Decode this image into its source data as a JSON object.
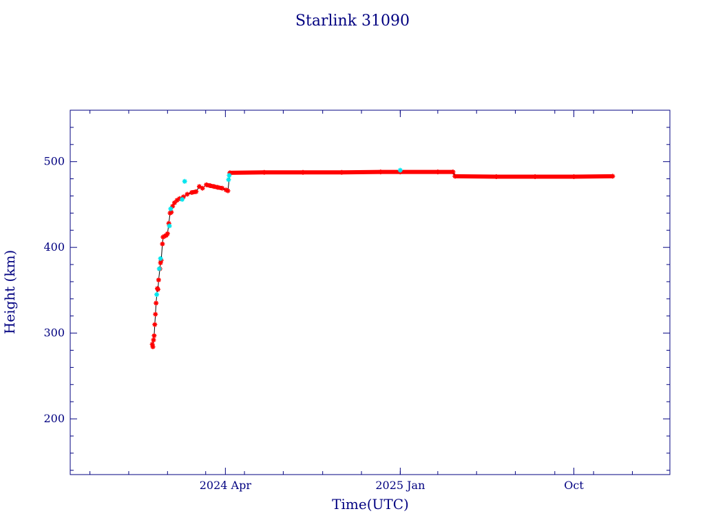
{
  "chart_data": {
    "type": "scatter",
    "title": "Starlink 31090",
    "xlabel": "Time(UTC)",
    "ylabel": "Height (km)",
    "xlim": [
      "2023-08-01",
      "2026-03-01"
    ],
    "ylim": [
      135,
      560
    ],
    "x_ticks": [
      {
        "date": "2024-04-01",
        "label": "2024 Apr"
      },
      {
        "date": "2025-01-01",
        "label": "2025 Jan"
      },
      {
        "date": "2025-10-01",
        "label": "Oct"
      }
    ],
    "y_ticks": [
      200,
      300,
      400,
      500
    ],
    "grid": false,
    "colors": {
      "axis": "#000080",
      "line": "#000000",
      "primary": "#ff0000",
      "secondary": "#00e5ee"
    },
    "series": [
      {
        "points": [
          [
            "2023-12-08",
            287
          ],
          [
            "2023-12-09",
            284
          ],
          [
            "2023-12-10",
            292
          ],
          [
            "2023-12-11",
            297
          ],
          [
            "2023-12-12",
            310
          ],
          [
            "2023-12-13",
            322
          ],
          [
            "2023-12-14",
            335
          ],
          [
            "2023-12-16",
            352
          ],
          [
            "2023-12-17",
            351
          ],
          [
            "2023-12-18",
            362
          ],
          [
            "2023-12-20",
            375
          ],
          [
            "2023-12-21",
            382
          ],
          [
            "2023-12-22",
            385
          ],
          [
            "2023-12-24",
            404
          ],
          [
            "2023-12-25",
            412
          ],
          [
            "2023-12-27",
            413
          ],
          [
            "2023-12-30",
            414
          ],
          [
            "2024-01-01",
            416
          ],
          [
            "2024-01-03",
            428
          ],
          [
            "2024-01-05",
            440
          ],
          [
            "2024-01-07",
            441
          ],
          [
            "2024-01-09",
            448
          ],
          [
            "2024-01-12",
            452
          ],
          [
            "2024-01-16",
            455
          ],
          [
            "2024-01-20",
            457
          ],
          [
            "2024-01-26",
            459
          ],
          [
            "2024-02-01",
            462
          ],
          [
            "2024-02-08",
            464
          ],
          [
            "2024-02-15",
            465
          ],
          [
            "2024-02-20",
            471
          ],
          [
            "2024-02-25",
            469
          ],
          [
            "2024-03-02",
            473
          ],
          [
            "2024-03-08",
            472
          ],
          [
            "2024-03-14",
            471
          ],
          [
            "2024-03-20",
            470
          ],
          [
            "2024-03-27",
            469
          ],
          [
            "2024-04-02",
            467
          ],
          [
            "2024-04-05",
            466
          ],
          [
            "2024-04-08",
            487
          ],
          [
            "2024-06-01",
            487.5
          ],
          [
            "2024-08-01",
            487.5
          ],
          [
            "2024-10-01",
            487.5
          ],
          [
            "2024-12-01",
            488
          ],
          [
            "2025-01-01",
            488
          ],
          [
            "2025-03-01",
            488
          ],
          [
            "2025-03-25",
            488
          ],
          [
            "2025-03-28",
            483
          ],
          [
            "2025-06-01",
            482.5
          ],
          [
            "2025-08-01",
            482.5
          ],
          [
            "2025-10-01",
            482.5
          ],
          [
            "2025-12-01",
            483
          ]
        ]
      },
      {
        "points": [
          [
            "2023-12-15",
            345
          ],
          [
            "2023-12-19",
            375
          ],
          [
            "2023-12-21",
            387
          ],
          [
            "2024-01-04",
            425
          ],
          [
            "2024-01-06",
            445
          ],
          [
            "2024-01-24",
            456
          ],
          [
            "2024-01-28",
            477
          ],
          [
            "2024-04-06",
            479
          ],
          [
            "2024-04-07",
            484
          ],
          [
            "2025-01-01",
            490
          ]
        ]
      }
    ]
  }
}
